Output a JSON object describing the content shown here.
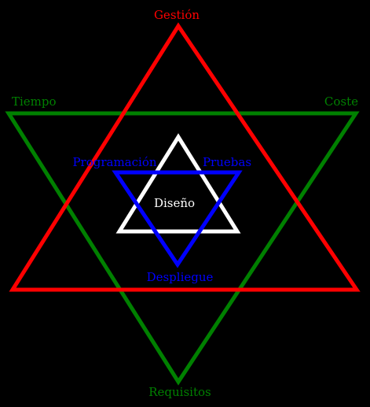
{
  "colors": {
    "background": "#000000",
    "management": "#ff0000",
    "constraints": "#008000",
    "process": "#0000ff",
    "core": "#ffffff"
  },
  "labels": {
    "top": "Gestión",
    "left": "Tiempo",
    "right": "Coste",
    "bottom": "Requisitos",
    "inner_left": "Programación",
    "inner_right": "Pruebas",
    "inner_bottom": "Despliegue",
    "center": "Diseño"
  }
}
